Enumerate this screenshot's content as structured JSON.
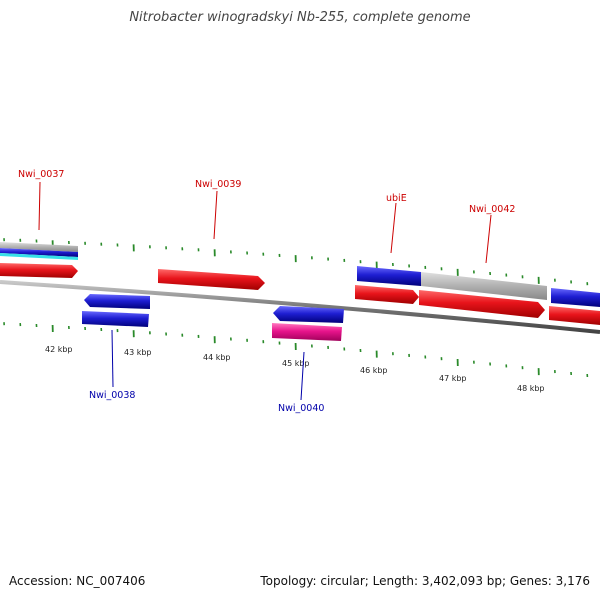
{
  "title": "Nitrobacter winogradskyi Nb-255, complete genome",
  "footer": {
    "accession": "Accession: NC_007406",
    "stats": "Topology: circular; Length: 3,402,093 bp; Genes: 3,176"
  },
  "colors": {
    "forward_cds": "#e8141b",
    "reverse_cds": "#1e1ed2",
    "rrna": "#e8148c",
    "pseudo": "#b0b0b0",
    "tick": "#2a8a2a",
    "backbone": "#777777",
    "label_forward": "#cc0000",
    "label_reverse": "#0000aa"
  },
  "kbp_labels": [
    "42 kbp",
    "43 kbp",
    "44 kbp",
    "45 kbp",
    "46 kbp",
    "47 kbp",
    "48 kbp"
  ],
  "gene_labels": [
    {
      "text": "Nwi_0037",
      "strand": "forward"
    },
    {
      "text": "Nwi_0038",
      "strand": "reverse"
    },
    {
      "text": "Nwi_0039",
      "strand": "forward"
    },
    {
      "text": "Nwi_0040",
      "strand": "reverse"
    },
    {
      "text": "ubiE",
      "strand": "forward"
    },
    {
      "text": "Nwi_0042",
      "strand": "forward"
    }
  ]
}
